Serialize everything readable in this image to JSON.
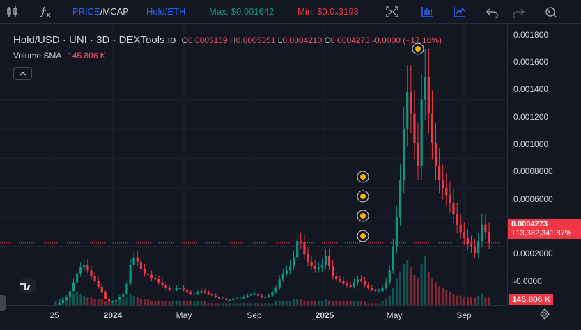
{
  "toolbar": {
    "mode_price": "PRICE",
    "mode_sep": "/",
    "mode_mcap": "MCAP",
    "pair_toggle": "Hold/ETH",
    "max_label": "Max: $0.001642",
    "min_label": "Min: $0.0₈3193",
    "icons": [
      "candles-icon",
      "indicators-icon",
      "fullscreen-icon",
      "bar-chart-icon",
      "line-chart-icon",
      "undo-icon",
      "redo-icon",
      "screenshot-icon"
    ]
  },
  "legend": {
    "symbol": "Hold/USD · UNI · 3D · DEXTools.io",
    "o_label": "O",
    "o_value": "0.0005159",
    "h_label": "H",
    "h_value": "0.0005351",
    "l_label": "L",
    "l_value": "0.0004210",
    "c_label": "C",
    "c_value": "0.0004273",
    "change": "-0.0000 (−17.16%)",
    "volume_label": "Volume SMA",
    "volume_value": "145.806 K"
  },
  "price_axis": {
    "ticks": [
      "0.001800",
      "0.001600",
      "0.001400",
      "0.001200",
      "0.001000",
      "0.0008000",
      "0.0006000",
      "0.0004000",
      "0.0002000",
      "-0.0000"
    ],
    "current_price": "0.0004273",
    "current_change": "+13,382,341.87%",
    "volume_value": "145.806 K"
  },
  "time_axis": {
    "ticks": [
      {
        "label": "25",
        "bold": false
      },
      {
        "label": "2024",
        "bold": true
      },
      {
        "label": "May",
        "bold": false
      },
      {
        "label": "Sep",
        "bold": false
      },
      {
        "label": "2025",
        "bold": true
      },
      {
        "label": "May",
        "bold": false
      },
      {
        "label": "Sep",
        "bold": false
      }
    ]
  },
  "colors": {
    "background": "#131722",
    "up": "#089981",
    "down": "#f23645",
    "grid": "#1e222d",
    "price_line": "#f23645",
    "marker": "#f5b301"
  },
  "chart_data": {
    "type": "candlestick",
    "title": "Hold/USD · UNI · 3D · DEXTools.io",
    "ylim": [
      -5e-05,
      0.00185
    ],
    "x_labels": [
      "25",
      "2024",
      "May",
      "Sep",
      "2025",
      "May",
      "Sep"
    ],
    "series": [
      {
        "name": "Hold/USD",
        "close": [
          0.0,
          2e-05,
          4e-05,
          6e-05,
          0.0001,
          0.00016,
          0.00022,
          0.00026,
          0.00028,
          0.00024,
          0.0002,
          0.00017,
          0.00013,
          9e-05,
          5e-05,
          3e-05,
          3e-05,
          4e-05,
          6e-05,
          8e-05,
          0.00015,
          0.00028,
          0.00033,
          0.0003,
          0.00025,
          0.00022,
          0.00021,
          0.00019,
          0.00018,
          0.00016,
          0.00014,
          0.00012,
          0.00011,
          0.00011,
          0.00012,
          0.00012,
          0.00011,
          9e-05,
          8e-05,
          8e-05,
          9e-05,
          0.0001,
          9e-05,
          8e-05,
          7e-05,
          6e-05,
          5e-05,
          5e-05,
          4e-05,
          4e-05,
          5e-05,
          5e-05,
          5e-05,
          6e-05,
          7e-05,
          8e-05,
          8e-05,
          7e-05,
          6e-05,
          6e-05,
          7e-05,
          9e-05,
          0.00012,
          0.00018,
          0.00022,
          0.00024,
          0.00027,
          0.00033,
          0.00044,
          0.00043,
          0.00035,
          0.0003,
          0.00027,
          0.00025,
          0.00026,
          0.00028,
          0.00034,
          0.00027,
          0.0002,
          0.00018,
          0.00017,
          0.00015,
          0.00014,
          0.00013,
          0.00016,
          0.00018,
          0.00017,
          0.00014,
          0.00012,
          0.00011,
          0.0001,
          0.0001,
          0.00012,
          0.00016,
          0.00024,
          0.0004,
          0.0006,
          0.00085,
          0.0012,
          0.00145,
          0.0013,
          0.0011,
          0.00095,
          0.0014,
          0.00155,
          0.0013,
          0.0011,
          0.00095,
          0.00085,
          0.0008,
          0.00075,
          0.0007,
          0.00062,
          0.00055,
          0.0005,
          0.00046,
          0.00042,
          0.0004,
          0.00036,
          0.00044,
          0.00055,
          0.0005,
          0.00043
        ],
        "volume": [
          2,
          3,
          4,
          3,
          5,
          6,
          7,
          6,
          5,
          4,
          4,
          3,
          3,
          3,
          2,
          2,
          2,
          2,
          2,
          3,
          4,
          6,
          5,
          4,
          3,
          3,
          3,
          2,
          2,
          2,
          2,
          2,
          2,
          2,
          2,
          2,
          2,
          2,
          2,
          2,
          2,
          2,
          2,
          1,
          1,
          1,
          1,
          1,
          1,
          1,
          1,
          1,
          1,
          1,
          1,
          1,
          1,
          1,
          1,
          1,
          1,
          1,
          2,
          2,
          2,
          2,
          2,
          3,
          3,
          3,
          2,
          2,
          2,
          2,
          2,
          2,
          3,
          2,
          2,
          2,
          2,
          2,
          2,
          2,
          2,
          2,
          2,
          2,
          1,
          1,
          1,
          1,
          2,
          3,
          5,
          9,
          14,
          18,
          22,
          24,
          20,
          16,
          14,
          22,
          26,
          18,
          14,
          12,
          10,
          9,
          8,
          7,
          6,
          5,
          5,
          4,
          4,
          4,
          4,
          5,
          6,
          4,
          4
        ]
      }
    ],
    "current_price": 0.0004273,
    "markers_count": 5
  }
}
